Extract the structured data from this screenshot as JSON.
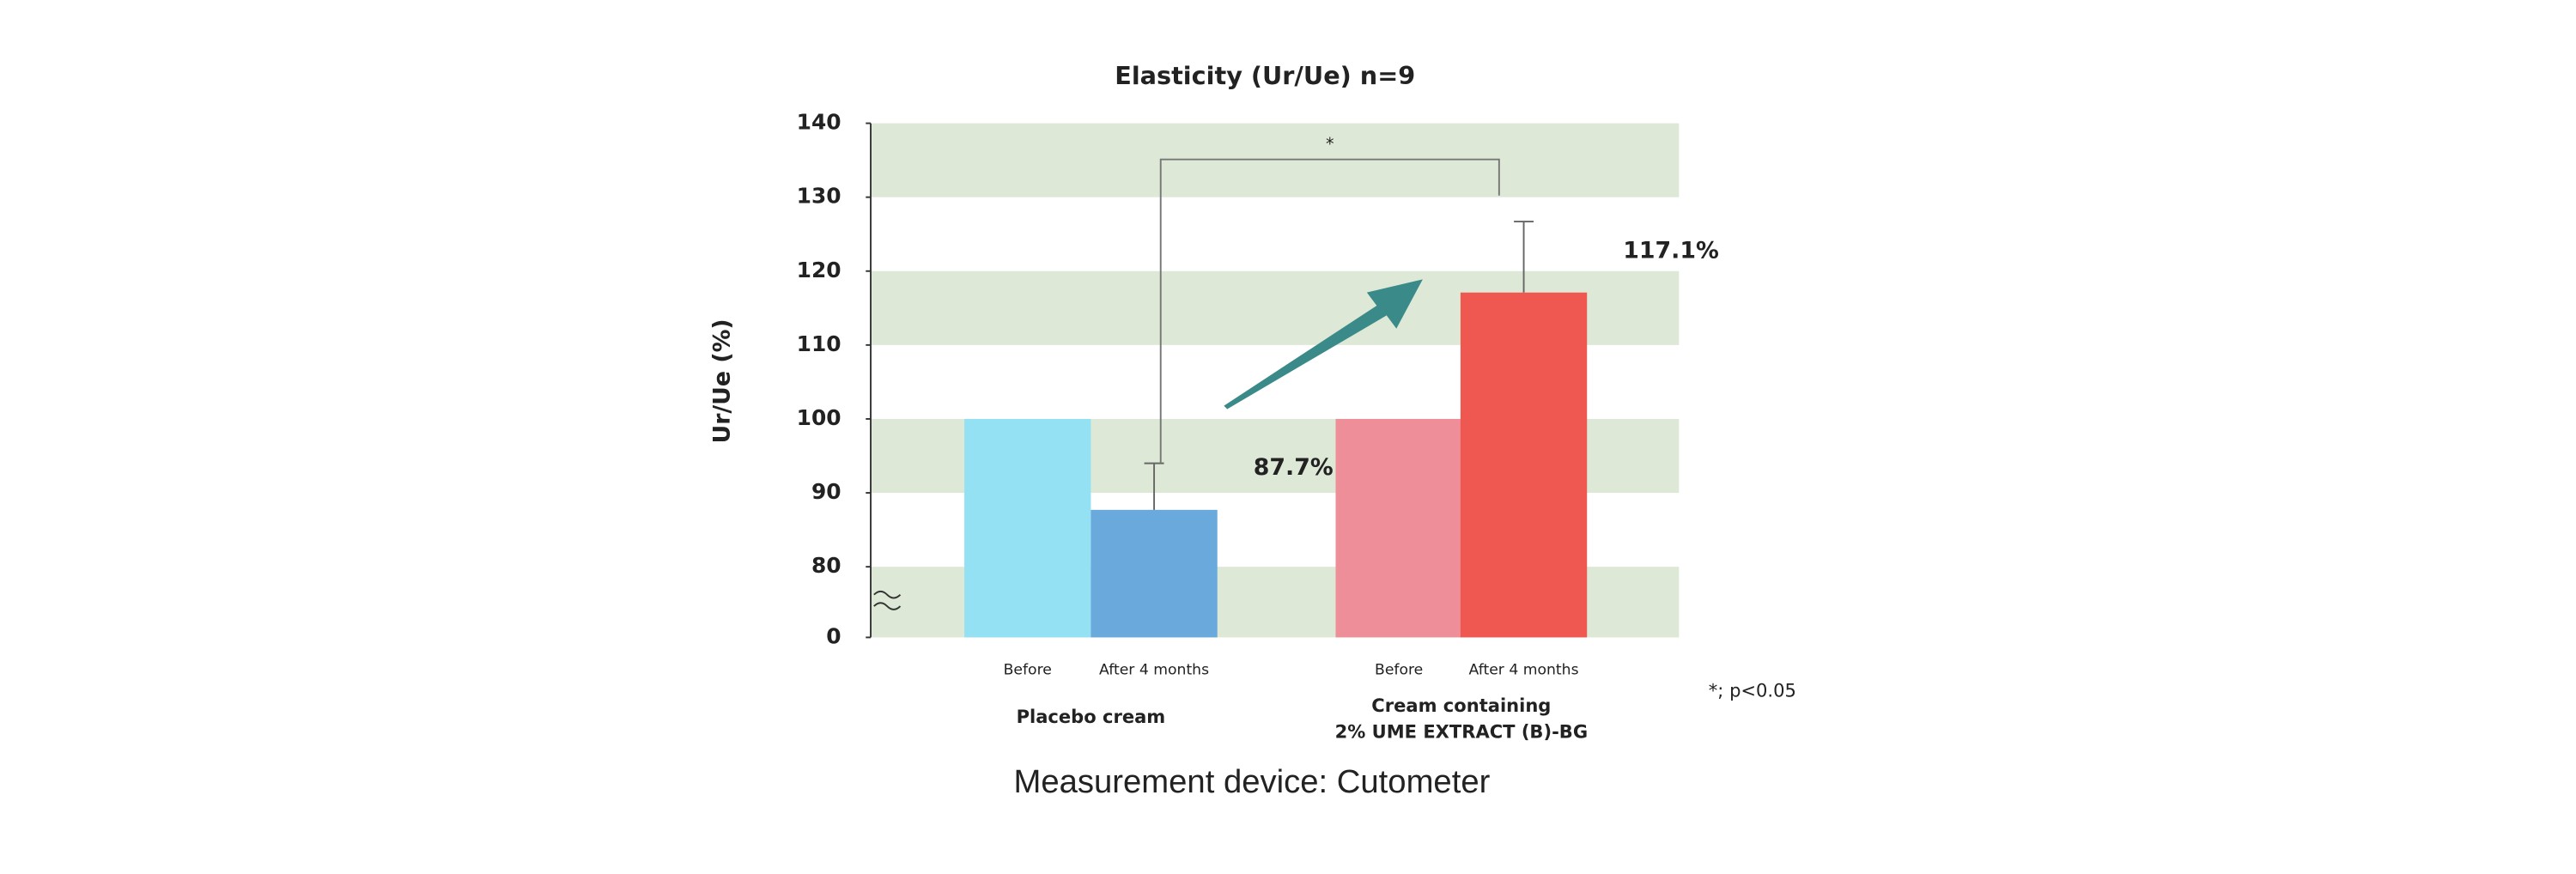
{
  "chart_data": {
    "type": "bar",
    "title": "Elasticity (Ur/Ue) n=9",
    "y_label": "Ur/Ue (%)",
    "categories": [
      "Before",
      "After 4 months",
      "Before",
      "After 4 months"
    ],
    "groups": [
      "Placebo cream",
      "Cream containing\n2% UME EXTRACT (B)-BG"
    ],
    "group_of": [
      0,
      0,
      1,
      1
    ],
    "values": [
      100,
      87.7,
      100,
      117.1
    ],
    "value_labels": [
      null,
      "87.7%",
      null,
      "117.1%"
    ],
    "errors": [
      null,
      6.3,
      null,
      9.6
    ],
    "colors": [
      "#93e1f2",
      "#6aa9dc",
      "#ee8e98",
      "#ee5850"
    ],
    "ylim": [
      0,
      140
    ],
    "yticks": [
      0,
      80,
      90,
      100,
      110,
      120,
      130,
      140
    ],
    "axis_break": 80,
    "grid_bands": true,
    "band_color": "#dde9d6",
    "significance": {
      "label": "*",
      "between": [
        1,
        3
      ]
    },
    "footnote": "*; p<0.05"
  },
  "caption": "Measurement device: Cutometer"
}
